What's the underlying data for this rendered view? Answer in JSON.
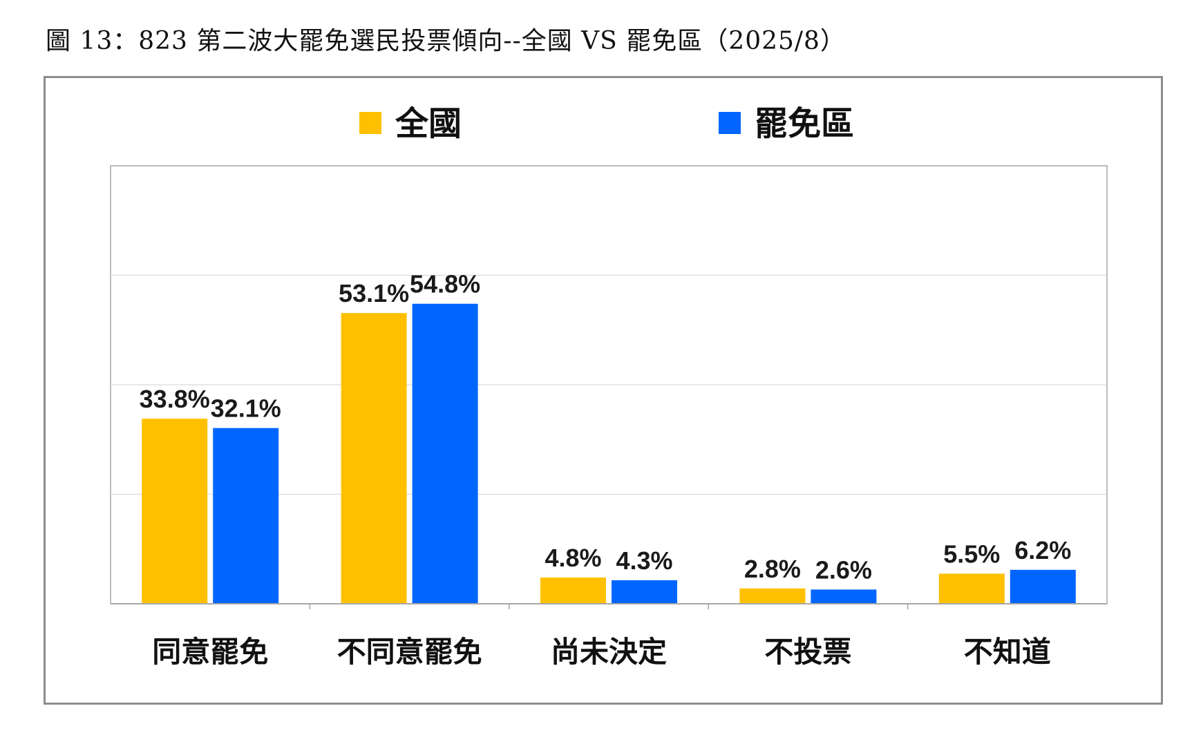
{
  "figure_title": "圖 13：823 第二波大罷免選民投票傾向--全國 VS 罷免區（2025/8）",
  "chart_data": {
    "type": "bar",
    "categories": [
      "同意罷免",
      "不同意罷免",
      "尚未決定",
      "不投票",
      "不知道"
    ],
    "series": [
      {
        "name": "全國",
        "color": "#FFC000",
        "values": [
          33.8,
          53.1,
          4.8,
          2.8,
          5.5
        ],
        "labels": [
          "33.8%",
          "53.1%",
          "4.8%",
          "2.8%",
          "5.5%"
        ]
      },
      {
        "name": "罷免區",
        "color": "#0066FF",
        "values": [
          32.1,
          54.8,
          4.3,
          2.6,
          6.2
        ],
        "labels": [
          "32.1%",
          "54.8%",
          "4.3%",
          "2.6%",
          "6.2%"
        ]
      }
    ],
    "ylim": [
      0,
      80
    ],
    "grid": true,
    "legend": "top-center"
  }
}
